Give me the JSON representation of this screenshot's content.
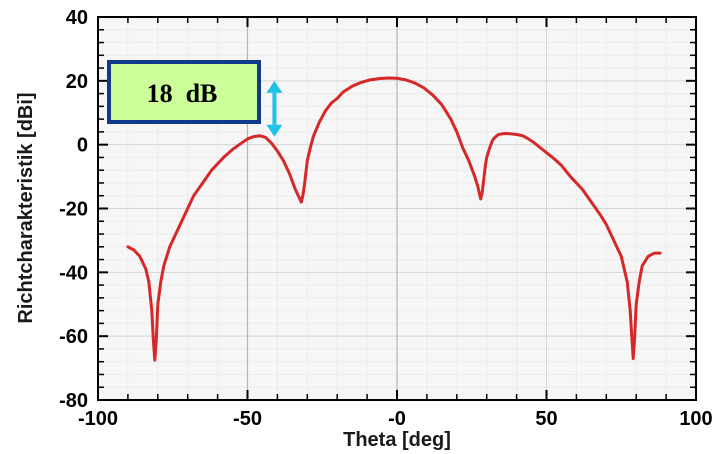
{
  "chart_data": {
    "type": "line",
    "xlabel": "Theta [deg]",
    "ylabel": "Richtcharakteristik [dBi]",
    "xlim": [
      -100,
      100
    ],
    "ylim": [
      -80,
      40
    ],
    "xticks": [
      -100,
      -50,
      0,
      50,
      100
    ],
    "xtick_labels": [
      "-100",
      "-50",
      "-0",
      "50",
      "100"
    ],
    "yticks": [
      -80,
      -60,
      -40,
      -20,
      0,
      20,
      40
    ],
    "ytick_labels": [
      "-80",
      "-60",
      "-40",
      "-20",
      "0",
      "20",
      "40"
    ],
    "grid": true,
    "series": [
      {
        "color": "#d62828",
        "x": [
          -90,
          -88,
          -86,
          -84,
          -83,
          -82,
          -81.5,
          -81,
          -80.5,
          -80,
          -79,
          -78,
          -76,
          -74,
          -72,
          -70,
          -68,
          -65,
          -62,
          -58,
          -55,
          -52,
          -50,
          -48,
          -46,
          -44,
          -42,
          -40,
          -38,
          -36,
          -34,
          -33,
          -32,
          -31.5,
          -31,
          -30.5,
          -30,
          -29,
          -28,
          -26,
          -24,
          -22,
          -20,
          -18,
          -15,
          -12,
          -9,
          -6,
          -3,
          0,
          3,
          6,
          9,
          12,
          15,
          18,
          20,
          22,
          24,
          26,
          27,
          28,
          28.5,
          29,
          29.5,
          30,
          31,
          32,
          33,
          34,
          36,
          38,
          40,
          42,
          44,
          46,
          48,
          50,
          52,
          55,
          58,
          62,
          65,
          68,
          70,
          72,
          74,
          75,
          76,
          77,
          78,
          78.5,
          79,
          79.5,
          80,
          81,
          82,
          84,
          86,
          88
        ],
        "y": [
          -32,
          -33,
          -35,
          -39,
          -43,
          -52,
          -61,
          -67.5,
          -61,
          -50,
          -43,
          -38,
          -32,
          -28,
          -24,
          -20,
          -16,
          -12,
          -8,
          -4,
          -1.5,
          0.5,
          1.8,
          2.5,
          2.8,
          2.3,
          0.5,
          -2,
          -5,
          -9,
          -14,
          -16,
          -18,
          -16,
          -13,
          -9,
          -5,
          -1,
          2.5,
          7,
          10.5,
          13,
          14.5,
          16.5,
          18.3,
          19.5,
          20.3,
          20.7,
          20.9,
          20.8,
          20.3,
          19.3,
          17.8,
          15.5,
          12.5,
          8,
          4,
          -1,
          -5,
          -10,
          -13,
          -17,
          -15,
          -11,
          -7,
          -4,
          -1,
          1.5,
          2.5,
          3.2,
          3.5,
          3.4,
          3.2,
          2.8,
          1.8,
          0.5,
          -1,
          -2.5,
          -4,
          -6.5,
          -10,
          -14,
          -18,
          -22,
          -25,
          -29,
          -33,
          -35,
          -39,
          -43,
          -52,
          -60,
          -67,
          -60,
          -50,
          -43,
          -38,
          -35,
          -34,
          -34
        ]
      }
    ],
    "annotation": {
      "text": "18  dB",
      "arrow_from": [
        -41,
        20
      ],
      "arrow_to": [
        -41,
        2.5
      ]
    }
  },
  "colors": {
    "line": "#d62828",
    "grid_major": "#d6d6d6",
    "grid_minor": "#ececec",
    "plot_bg": "#f6f6f6",
    "annot_fill": "#ccff99",
    "annot_border": "#123a8c",
    "arrow": "#1ec3e8"
  }
}
